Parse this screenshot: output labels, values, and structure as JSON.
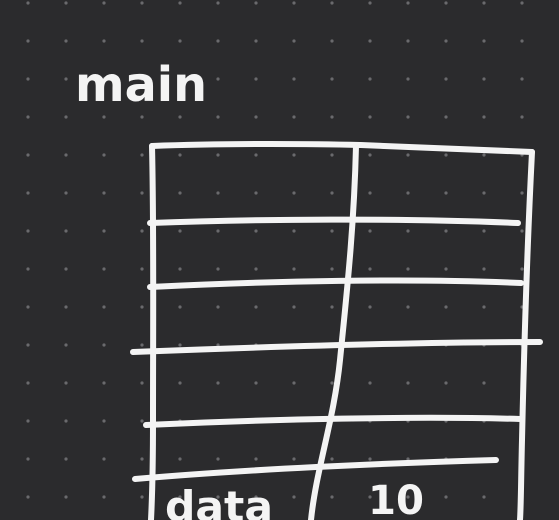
{
  "canvas": {
    "background": "#2b2b2d",
    "ink_color": "#f4f4f4",
    "dot_color": "#6a6a6d",
    "pattern": "dot-grid"
  },
  "drawing": {
    "label": "main",
    "table": {
      "rows": [
        [
          "",
          ""
        ],
        [
          "",
          ""
        ],
        [
          "",
          ""
        ],
        [
          "",
          ""
        ],
        [
          "",
          ""
        ],
        [
          "data",
          "10"
        ]
      ]
    }
  }
}
